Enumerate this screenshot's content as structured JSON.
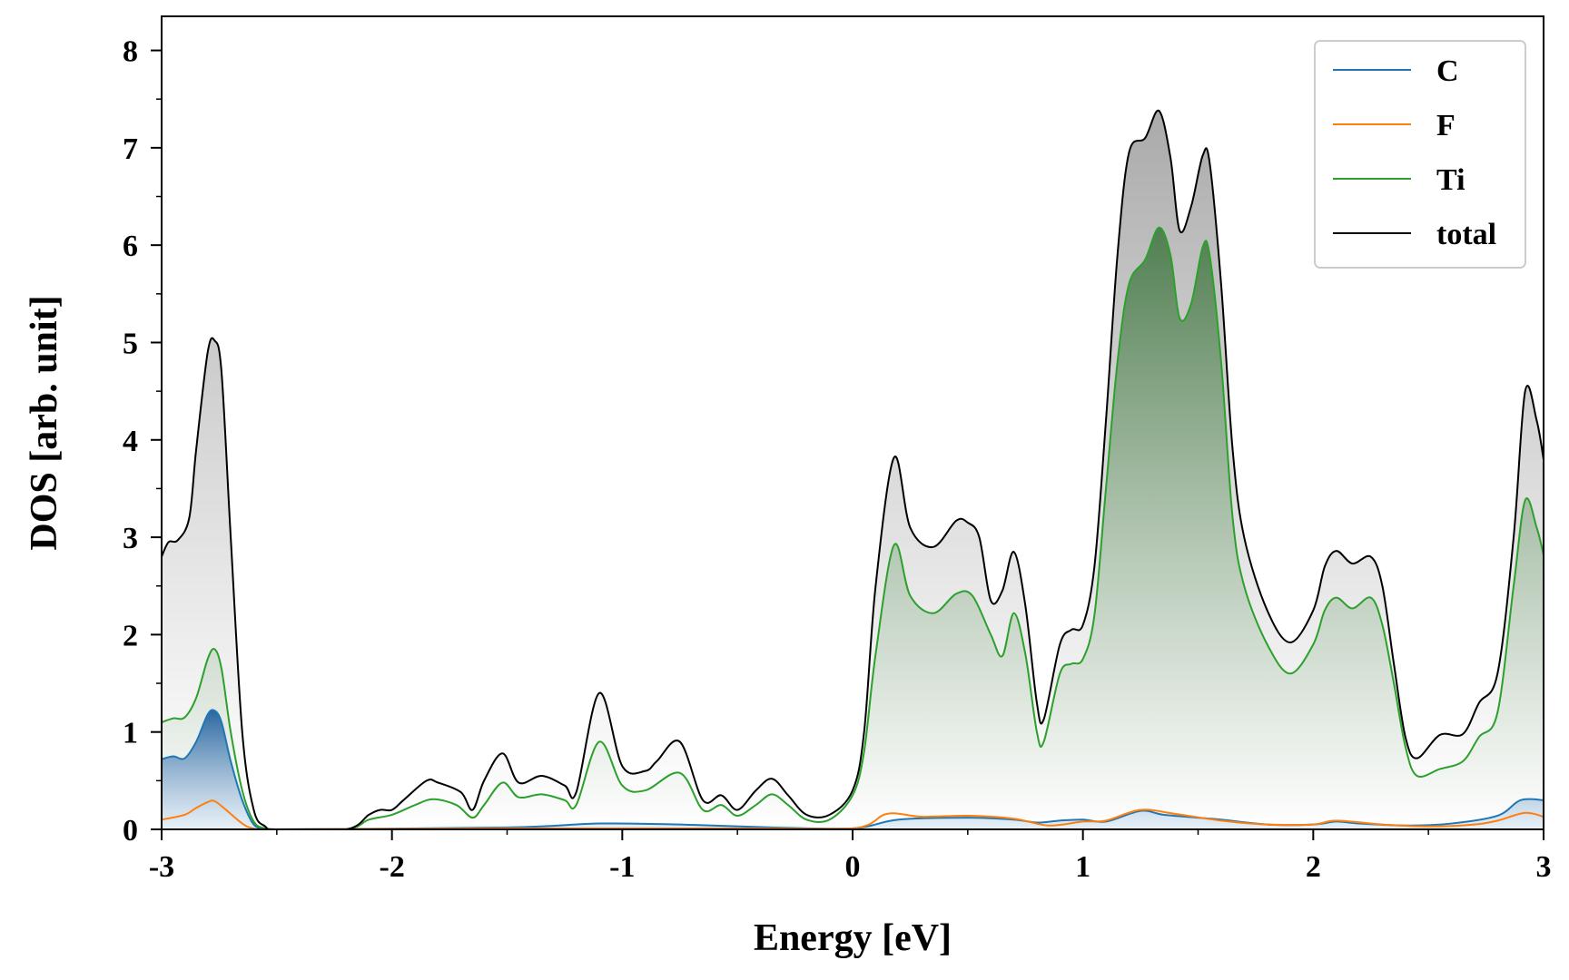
{
  "chart_data": {
    "type": "area",
    "title": "",
    "xlabel": "Energy [eV]",
    "ylabel": "DOS [arb. unit]",
    "xlim": [
      -3,
      3
    ],
    "ylim": [
      0,
      8.35
    ],
    "xticks": [
      -3,
      -2,
      -1,
      0,
      1,
      2,
      3
    ],
    "xtick_labels": [
      "-3",
      "-2",
      "-1",
      "0",
      "1",
      "2",
      "3"
    ],
    "yticks": [
      0,
      1,
      2,
      3,
      4,
      5,
      6,
      7,
      8
    ],
    "ytick_labels": [
      "0",
      "1",
      "2",
      "3",
      "4",
      "5",
      "6",
      "7",
      "8"
    ],
    "grid": false,
    "legend_position": "top-right",
    "series": [
      {
        "name": "C",
        "color": "#1f77b4",
        "filled": true,
        "x": [
          -3.0,
          -2.95,
          -2.9,
          -2.85,
          -2.8,
          -2.77,
          -2.74,
          -2.7,
          -2.65,
          -2.6,
          -2.55,
          -2.5,
          -1.5,
          -1.1,
          -0.75,
          -0.35,
          0.0,
          0.2,
          0.5,
          0.7,
          0.8,
          0.9,
          1.0,
          1.1,
          1.25,
          1.35,
          1.5,
          1.6,
          1.8,
          2.0,
          2.1,
          2.2,
          2.4,
          2.6,
          2.8,
          2.9,
          3.0
        ],
        "y": [
          0.72,
          0.75,
          0.73,
          0.9,
          1.18,
          1.22,
          1.1,
          0.7,
          0.3,
          0.05,
          0.01,
          0.0,
          0.02,
          0.06,
          0.05,
          0.02,
          0.01,
          0.1,
          0.12,
          0.1,
          0.07,
          0.09,
          0.1,
          0.08,
          0.19,
          0.15,
          0.12,
          0.1,
          0.05,
          0.05,
          0.08,
          0.06,
          0.04,
          0.06,
          0.14,
          0.3,
          0.3
        ]
      },
      {
        "name": "F",
        "color": "#ff7f0e",
        "filled": false,
        "x": [
          -3.0,
          -2.9,
          -2.85,
          -2.8,
          -2.77,
          -2.72,
          -2.65,
          -2.6,
          -2.5,
          -1.5,
          -0.5,
          0.0,
          0.15,
          0.3,
          0.5,
          0.7,
          0.85,
          1.0,
          1.1,
          1.25,
          1.4,
          1.6,
          1.8,
          2.0,
          2.1,
          2.3,
          2.5,
          2.7,
          2.8,
          2.92,
          3.0
        ],
        "y": [
          0.1,
          0.15,
          0.22,
          0.28,
          0.29,
          0.2,
          0.06,
          0.01,
          0.0,
          0.01,
          0.01,
          0.01,
          0.16,
          0.13,
          0.14,
          0.11,
          0.04,
          0.08,
          0.09,
          0.2,
          0.16,
          0.09,
          0.05,
          0.05,
          0.09,
          0.05,
          0.03,
          0.05,
          0.09,
          0.17,
          0.13
        ]
      },
      {
        "name": "Ti",
        "color": "#2ca02c",
        "filled": true,
        "x": [
          -3.0,
          -2.95,
          -2.9,
          -2.85,
          -2.8,
          -2.77,
          -2.74,
          -2.7,
          -2.65,
          -2.6,
          -2.55,
          -2.5,
          -2.2,
          -2.1,
          -2.0,
          -1.9,
          -1.82,
          -1.72,
          -1.65,
          -1.6,
          -1.52,
          -1.45,
          -1.35,
          -1.25,
          -1.2,
          -1.1,
          -1.0,
          -0.9,
          -0.75,
          -0.65,
          -0.57,
          -0.5,
          -0.42,
          -0.35,
          -0.28,
          -0.2,
          -0.1,
          0.0,
          0.05,
          0.1,
          0.18,
          0.25,
          0.35,
          0.45,
          0.52,
          0.6,
          0.65,
          0.7,
          0.75,
          0.8,
          0.83,
          0.9,
          0.95,
          1.0,
          1.05,
          1.1,
          1.15,
          1.2,
          1.27,
          1.33,
          1.38,
          1.42,
          1.47,
          1.52,
          1.55,
          1.6,
          1.65,
          1.7,
          1.8,
          1.9,
          2.0,
          2.05,
          2.1,
          2.17,
          2.25,
          2.3,
          2.35,
          2.4,
          2.45,
          2.55,
          2.65,
          2.72,
          2.8,
          2.87,
          2.92,
          2.97,
          3.0
        ],
        "y": [
          1.1,
          1.14,
          1.15,
          1.35,
          1.75,
          1.85,
          1.65,
          1.0,
          0.4,
          0.08,
          0.01,
          0.0,
          0.0,
          0.1,
          0.15,
          0.25,
          0.31,
          0.25,
          0.12,
          0.25,
          0.48,
          0.33,
          0.36,
          0.3,
          0.25,
          0.9,
          0.45,
          0.4,
          0.58,
          0.2,
          0.25,
          0.14,
          0.25,
          0.36,
          0.25,
          0.1,
          0.1,
          0.35,
          0.8,
          1.8,
          2.92,
          2.4,
          2.22,
          2.42,
          2.4,
          2.0,
          1.78,
          2.22,
          1.8,
          1.0,
          0.9,
          1.6,
          1.7,
          1.75,
          2.2,
          3.5,
          4.8,
          5.6,
          5.85,
          6.18,
          5.9,
          5.25,
          5.4,
          5.98,
          5.9,
          4.8,
          3.2,
          2.5,
          1.9,
          1.6,
          1.9,
          2.25,
          2.38,
          2.27,
          2.38,
          2.1,
          1.5,
          0.85,
          0.55,
          0.62,
          0.7,
          0.95,
          1.2,
          2.5,
          3.38,
          3.1,
          2.82
        ]
      },
      {
        "name": "total",
        "color": "#000000",
        "filled": true,
        "x": [
          -3.0,
          -2.97,
          -2.93,
          -2.88,
          -2.85,
          -2.8,
          -2.77,
          -2.74,
          -2.7,
          -2.65,
          -2.6,
          -2.55,
          -2.5,
          -2.2,
          -2.1,
          -2.05,
          -2.0,
          -1.95,
          -1.85,
          -1.8,
          -1.7,
          -1.65,
          -1.6,
          -1.52,
          -1.45,
          -1.35,
          -1.25,
          -1.2,
          -1.1,
          -1.0,
          -0.9,
          -0.85,
          -0.75,
          -0.65,
          -0.57,
          -0.5,
          -0.42,
          -0.35,
          -0.28,
          -0.2,
          -0.1,
          0.0,
          0.05,
          0.1,
          0.18,
          0.25,
          0.35,
          0.45,
          0.5,
          0.55,
          0.6,
          0.65,
          0.7,
          0.75,
          0.8,
          0.83,
          0.9,
          0.95,
          1.0,
          1.05,
          1.1,
          1.15,
          1.2,
          1.27,
          1.33,
          1.38,
          1.42,
          1.47,
          1.52,
          1.55,
          1.6,
          1.65,
          1.7,
          1.8,
          1.9,
          2.0,
          2.05,
          2.1,
          2.17,
          2.25,
          2.3,
          2.35,
          2.4,
          2.45,
          2.55,
          2.65,
          2.72,
          2.8,
          2.87,
          2.92,
          2.97,
          3.0
        ],
        "y": [
          2.8,
          2.95,
          2.97,
          3.2,
          3.9,
          4.9,
          5.02,
          4.7,
          3.0,
          1.0,
          0.2,
          0.03,
          0.0,
          0.0,
          0.15,
          0.2,
          0.2,
          0.3,
          0.5,
          0.48,
          0.38,
          0.2,
          0.5,
          0.78,
          0.48,
          0.55,
          0.45,
          0.38,
          1.4,
          0.65,
          0.6,
          0.7,
          0.9,
          0.3,
          0.35,
          0.2,
          0.4,
          0.52,
          0.35,
          0.15,
          0.15,
          0.4,
          1.0,
          2.5,
          3.82,
          3.1,
          2.9,
          3.17,
          3.15,
          3.0,
          2.35,
          2.45,
          2.85,
          2.3,
          1.3,
          1.13,
          1.9,
          2.05,
          2.1,
          2.7,
          4.2,
          5.9,
          6.95,
          7.1,
          7.38,
          6.9,
          6.15,
          6.4,
          6.92,
          6.85,
          5.6,
          3.9,
          3.0,
          2.25,
          1.92,
          2.25,
          2.7,
          2.86,
          2.73,
          2.8,
          2.5,
          1.7,
          0.95,
          0.73,
          0.97,
          0.98,
          1.3,
          1.6,
          3.0,
          4.5,
          4.2,
          3.8
        ]
      }
    ]
  }
}
